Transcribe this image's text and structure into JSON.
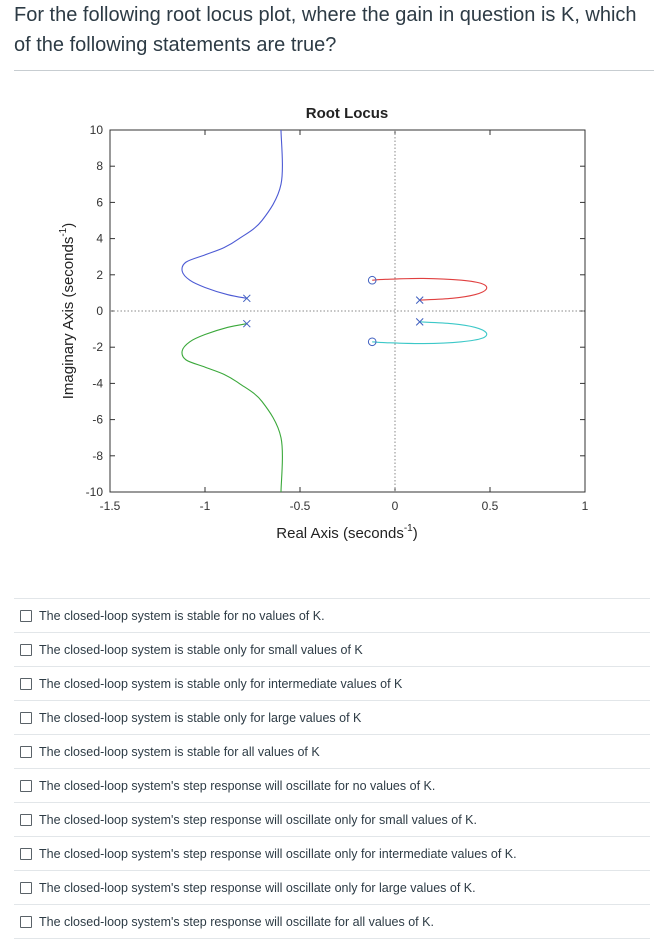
{
  "question": "For the following root locus plot, where the gain in question is K, which of the following statements are true?",
  "chart_data": {
    "type": "line",
    "title": "Root Locus",
    "xlabel": "Real Axis (seconds",
    "xlabel_sup": "-1",
    "xlabel_end": ")",
    "ylabel": "Imaginary Axis (seconds",
    "ylabel_sup": "-1",
    "ylabel_end": ")",
    "xlim": [
      -1.5,
      1
    ],
    "ylim": [
      -10,
      10
    ],
    "xticks": [
      "-1.5",
      "-1",
      "-0.5",
      "0",
      "0.5",
      "1"
    ],
    "yticks": [
      "10",
      "8",
      "6",
      "4",
      "2",
      "0",
      "-2",
      "-4",
      "-6",
      "-8",
      "-10"
    ],
    "grid": false,
    "poles": [
      [
        -0.78,
        0.7
      ],
      [
        -0.78,
        -0.7
      ],
      [
        0.13,
        0.6
      ],
      [
        0.13,
        -0.6
      ]
    ],
    "zeros": [
      [
        -0.12,
        1.7
      ],
      [
        -0.12,
        -1.7
      ]
    ],
    "colors": {
      "branch1": "#4c5ad4",
      "branch2": "#3aa83a",
      "branch3": "#e04040",
      "branch4": "#3cc8c8",
      "marker": "#4060c0"
    },
    "series": [
      {
        "x": [
          -0.78,
          -0.88,
          -1.0,
          -1.08,
          -1.12,
          -1.1,
          -1.0,
          -0.9,
          -0.82,
          -0.7,
          -0.6,
          -0.6
        ],
        "y": [
          0.7,
          0.9,
          1.3,
          1.7,
          2.2,
          2.7,
          3.1,
          3.5,
          4.0,
          5.0,
          7.0,
          10.0
        ]
      },
      {
        "x": [
          -0.78,
          -0.88,
          -1.0,
          -1.08,
          -1.12,
          -1.1,
          -1.0,
          -0.9,
          -0.82,
          -0.7,
          -0.6,
          -0.6
        ],
        "y": [
          -0.7,
          -0.9,
          -1.3,
          -1.7,
          -2.2,
          -2.7,
          -3.1,
          -3.5,
          -4.0,
          -5.0,
          -7.0,
          -10.0
        ]
      },
      {
        "x": [
          0.13,
          0.3,
          0.42,
          0.48,
          0.46,
          0.35,
          0.15,
          -0.05,
          -0.12
        ],
        "y": [
          0.6,
          0.7,
          0.9,
          1.2,
          1.5,
          1.7,
          1.8,
          1.75,
          1.7
        ]
      },
      {
        "x": [
          0.13,
          0.3,
          0.42,
          0.48,
          0.46,
          0.35,
          0.15,
          -0.05,
          -0.12
        ],
        "y": [
          -0.6,
          -0.7,
          -0.9,
          -1.2,
          -1.5,
          -1.7,
          -1.8,
          -1.75,
          -1.7
        ]
      }
    ]
  },
  "answers": [
    "The closed-loop system is stable for no values of K.",
    "The closed-loop system is stable only for small values of K",
    "The closed-loop system is stable only for intermediate values of K",
    "The closed-loop system is stable only for large values of K",
    "The closed-loop system is stable for all values of K",
    "The closed-loop system's step response will oscillate for no values of K.",
    "The closed-loop system's step response will oscillate only for small values of K.",
    "The closed-loop system's step response will oscillate only for intermediate values of K.",
    "The closed-loop system's step response will oscillate only for large values of K.",
    "The closed-loop system's step response will oscillate for all values of K."
  ]
}
